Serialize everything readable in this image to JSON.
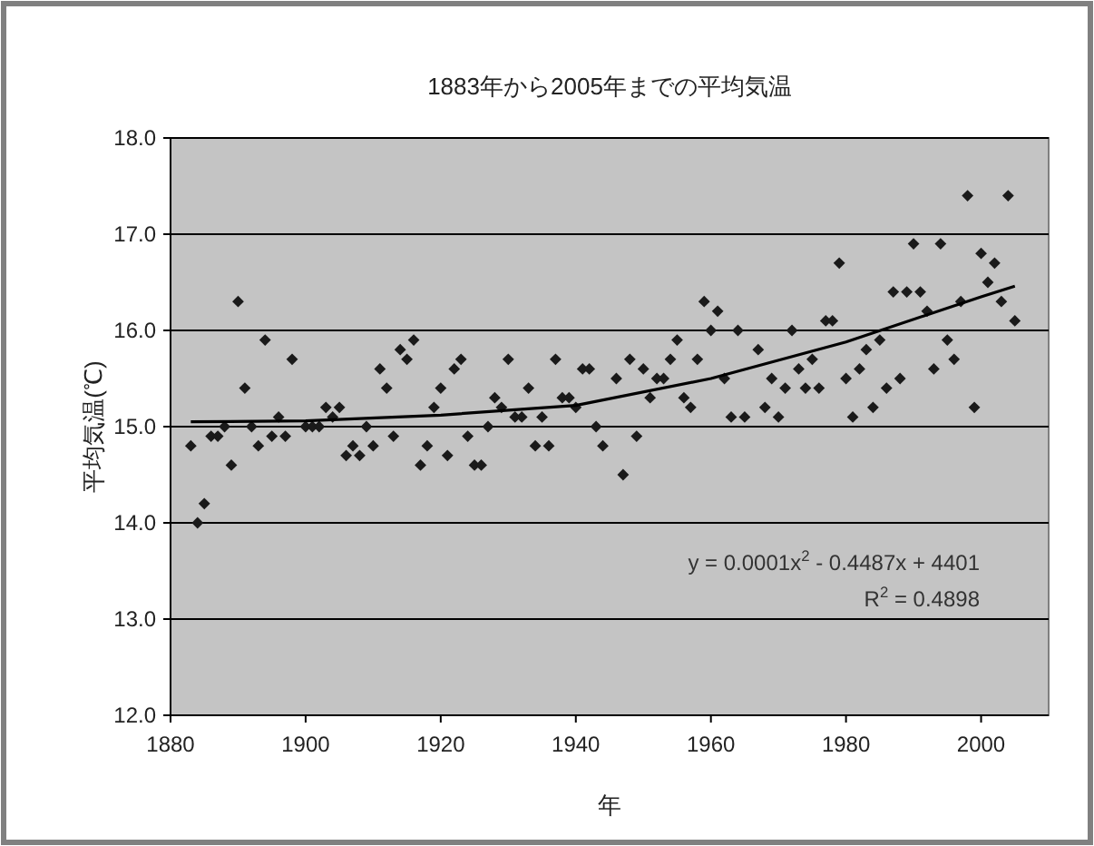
{
  "chart_data": {
    "type": "scatter",
    "title": "1883年から2005年までの平均気温",
    "xlabel": "年",
    "ylabel": "平均気温(℃)",
    "xlim": [
      1880,
      2010
    ],
    "xticks": [
      1880,
      1900,
      1920,
      1940,
      1960,
      1980,
      2000
    ],
    "ylim": [
      12,
      18
    ],
    "yticks": [
      {
        "value": 12,
        "label": "12.0"
      },
      {
        "value": 13,
        "label": "13.0"
      },
      {
        "value": 14,
        "label": "14.0"
      },
      {
        "value": 15,
        "label": "15.0"
      },
      {
        "value": 16,
        "label": "16.0"
      },
      {
        "value": 17,
        "label": "17.0"
      },
      {
        "value": 18,
        "label": "18.0"
      }
    ],
    "grid": "y",
    "annotations": [
      "y = 0.0001x$^{2}$ - 0.4487x + 4401",
      "R$^{2}$ = 0.4898"
    ],
    "series": [
      {
        "color": "#1a1a1a",
        "marker": "diamond",
        "x": [
          1883,
          1884,
          1885,
          1886,
          1887,
          1888,
          1889,
          1890,
          1891,
          1892,
          1893,
          1894,
          1895,
          1896,
          1897,
          1898,
          1900,
          1901,
          1902,
          1903,
          1904,
          1905,
          1906,
          1907,
          1908,
          1909,
          1910,
          1911,
          1912,
          1913,
          1914,
          1915,
          1916,
          1917,
          1918,
          1919,
          1920,
          1921,
          1922,
          1923,
          1924,
          1925,
          1926,
          1927,
          1928,
          1929,
          1930,
          1931,
          1932,
          1933,
          1934,
          1935,
          1936,
          1937,
          1938,
          1939,
          1940,
          1941,
          1942,
          1943,
          1944,
          1946,
          1947,
          1948,
          1949,
          1950,
          1951,
          1952,
          1953,
          1954,
          1955,
          1956,
          1957,
          1958,
          1959,
          1960,
          1961,
          1962,
          1963,
          1964,
          1965,
          1967,
          1968,
          1969,
          1970,
          1971,
          1972,
          1973,
          1974,
          1975,
          1976,
          1977,
          1978,
          1979,
          1980,
          1981,
          1982,
          1983,
          1984,
          1985,
          1986,
          1987,
          1988,
          1989,
          1990,
          1991,
          1992,
          1993,
          1994,
          1995,
          1996,
          1997,
          1998,
          1999,
          2000,
          2001,
          2002,
          2003,
          2004,
          2005
        ],
        "values": [
          14.8,
          14.0,
          14.2,
          14.9,
          14.9,
          15.0,
          14.6,
          16.3,
          15.4,
          15.0,
          14.8,
          15.9,
          14.9,
          15.1,
          14.9,
          15.7,
          15.0,
          15.0,
          15.0,
          15.2,
          15.1,
          15.2,
          14.7,
          14.8,
          14.7,
          15.0,
          14.8,
          15.6,
          15.4,
          14.9,
          15.8,
          15.7,
          15.9,
          14.6,
          14.8,
          15.2,
          15.4,
          14.7,
          15.6,
          15.7,
          14.9,
          14.6,
          14.6,
          15.0,
          15.3,
          15.2,
          15.7,
          15.1,
          15.1,
          15.4,
          14.8,
          15.1,
          14.8,
          15.7,
          15.3,
          15.3,
          15.2,
          15.6,
          15.6,
          15.0,
          14.8,
          15.5,
          14.5,
          15.7,
          14.9,
          15.6,
          15.3,
          15.5,
          15.5,
          15.7,
          15.9,
          15.3,
          15.2,
          15.7,
          16.3,
          16.0,
          16.2,
          15.5,
          15.1,
          16.0,
          15.1,
          15.8,
          15.2,
          15.5,
          15.1,
          15.4,
          16.0,
          15.6,
          15.4,
          15.7,
          15.4,
          16.1,
          16.1,
          16.7,
          15.5,
          15.1,
          15.6,
          15.8,
          15.2,
          15.9,
          15.4,
          16.4,
          15.5,
          16.4,
          16.9,
          16.4,
          16.2,
          15.6,
          16.9,
          15.9,
          15.7,
          16.3,
          17.4,
          15.2,
          16.8,
          16.5,
          16.7,
          16.3,
          17.4,
          16.1
        ]
      },
      {
        "type": "line",
        "color": "#000000",
        "marker": "none",
        "x": [
          1883,
          1900,
          1920,
          1940,
          1960,
          1980,
          2000,
          2005
        ],
        "values": [
          15.05,
          15.06,
          15.12,
          15.22,
          15.5,
          15.88,
          16.35,
          16.46
        ]
      }
    ]
  }
}
